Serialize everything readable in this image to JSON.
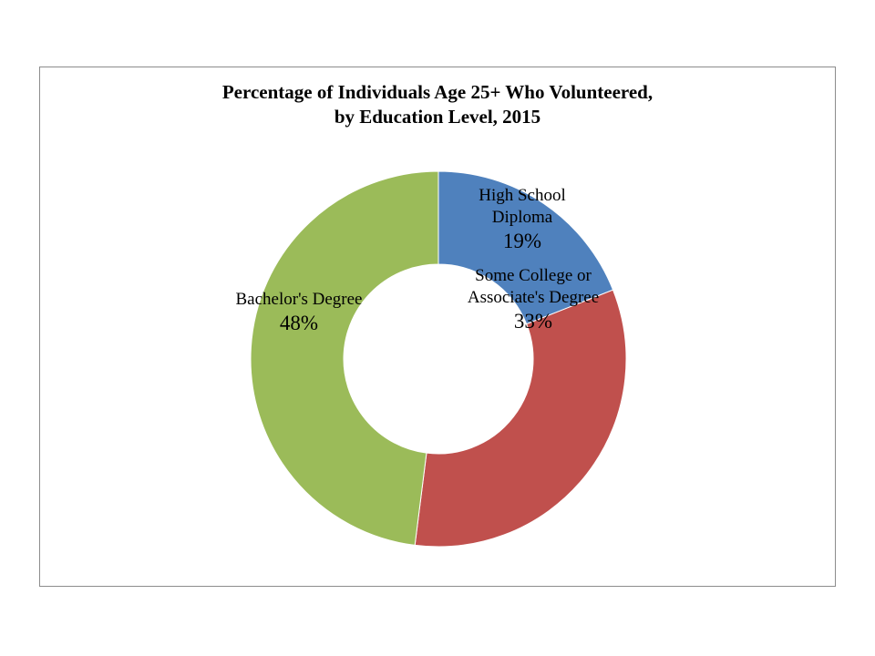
{
  "chart_data": {
    "type": "pie",
    "variant": "donut",
    "title_lines": [
      "Percentage of Individuals Age 25+ Who Volunteered,",
      "by Education Level, 2015"
    ],
    "slices": [
      {
        "label_lines": [
          "High School",
          "Diploma"
        ],
        "value": 19,
        "value_label": "19%",
        "color": "#4f81bd"
      },
      {
        "label_lines": [
          "Some College or",
          "Associate's Degree"
        ],
        "value": 33,
        "value_label": "33%",
        "color": "#c0504d"
      },
      {
        "label_lines": [
          "Bachelor's Degree"
        ],
        "value": 48,
        "value_label": "48%",
        "color": "#9bbb59"
      }
    ],
    "legend": "none",
    "start_angle_deg": 0,
    "direction": "clockwise"
  }
}
